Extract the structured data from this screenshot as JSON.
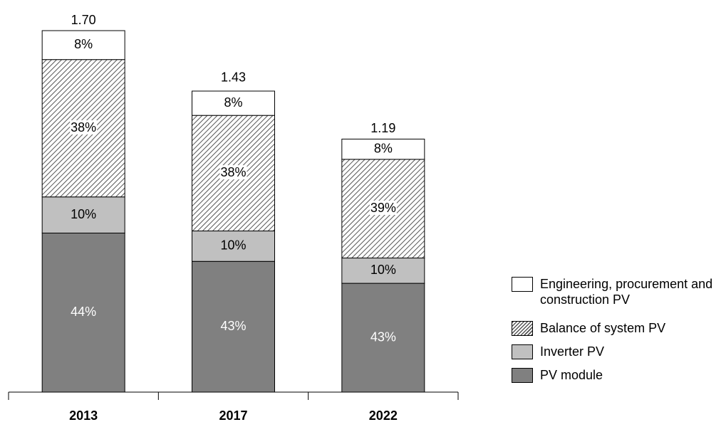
{
  "chart_data": {
    "type": "stacked_bar",
    "categories": [
      "2013",
      "2017",
      "2022"
    ],
    "totals": {
      "values": [
        1.7,
        1.43,
        1.19
      ],
      "value_labels": [
        "1.70",
        "1.43",
        "1.19"
      ]
    },
    "series": [
      {
        "name": "PV module",
        "color": "#808080",
        "label_color": "#ffffff",
        "values": [
          44,
          43,
          43
        ],
        "value_labels": [
          "44%",
          "43%",
          "43%"
        ]
      },
      {
        "name": "Inverter PV",
        "color": "#c0c0c0",
        "label_color": "#000000",
        "values": [
          10,
          10,
          10
        ],
        "value_labels": [
          "10%",
          "10%",
          "10%"
        ]
      },
      {
        "name": "Balance of system PV",
        "color": "#ffffff",
        "hatch": true,
        "label_color": "#000000",
        "values": [
          38,
          38,
          39
        ],
        "value_labels": [
          "38%",
          "38%",
          "39%"
        ]
      },
      {
        "name": "Engineering, procurement and construction PV",
        "color": "#ffffff",
        "label_color": "#000000",
        "values": [
          8,
          8,
          8
        ],
        "value_labels": [
          "8%",
          "8%",
          "8%"
        ]
      }
    ]
  }
}
